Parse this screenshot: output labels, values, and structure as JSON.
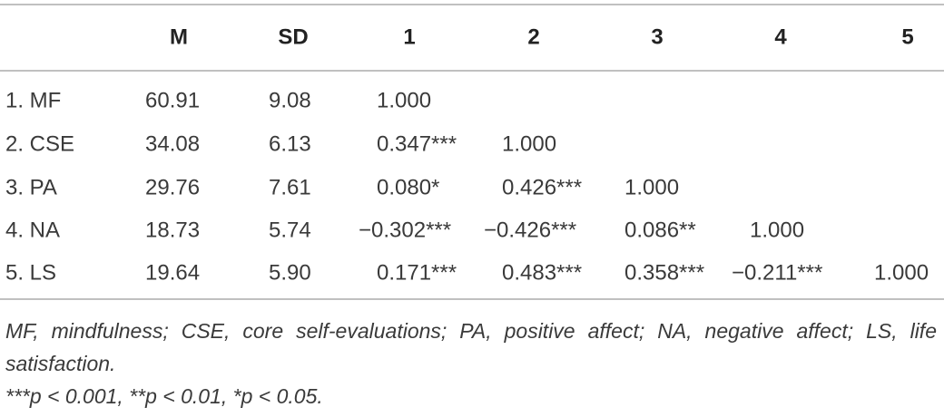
{
  "table": {
    "header": [
      "M",
      "SD",
      "1",
      "2",
      "3",
      "4",
      "5"
    ],
    "rows": [
      [
        "1. MF",
        "60.91",
        "9.08",
        "1.000"
      ],
      [
        "2. CSE",
        "34.08",
        "6.13",
        "0.347***",
        "1.000"
      ],
      [
        "3. PA",
        "29.76",
        "7.61",
        "0.080*",
        "0.426***",
        "1.000"
      ],
      [
        "4. NA",
        "18.73",
        "5.74",
        "−0.302***",
        "−0.426***",
        "0.086**",
        "1.000"
      ],
      [
        "5. LS",
        "19.64",
        "5.90",
        "0.171***",
        "0.483***",
        "0.358***",
        "−0.211***",
        "1.000"
      ]
    ]
  },
  "footnotes": [
    "MF, mindfulness; CSE, core self-evaluations; PA, positive affect; NA, negative affect; LS, life satisfaction.",
    "***p < 0.001, **p < 0.01, *p < 0.05."
  ]
}
